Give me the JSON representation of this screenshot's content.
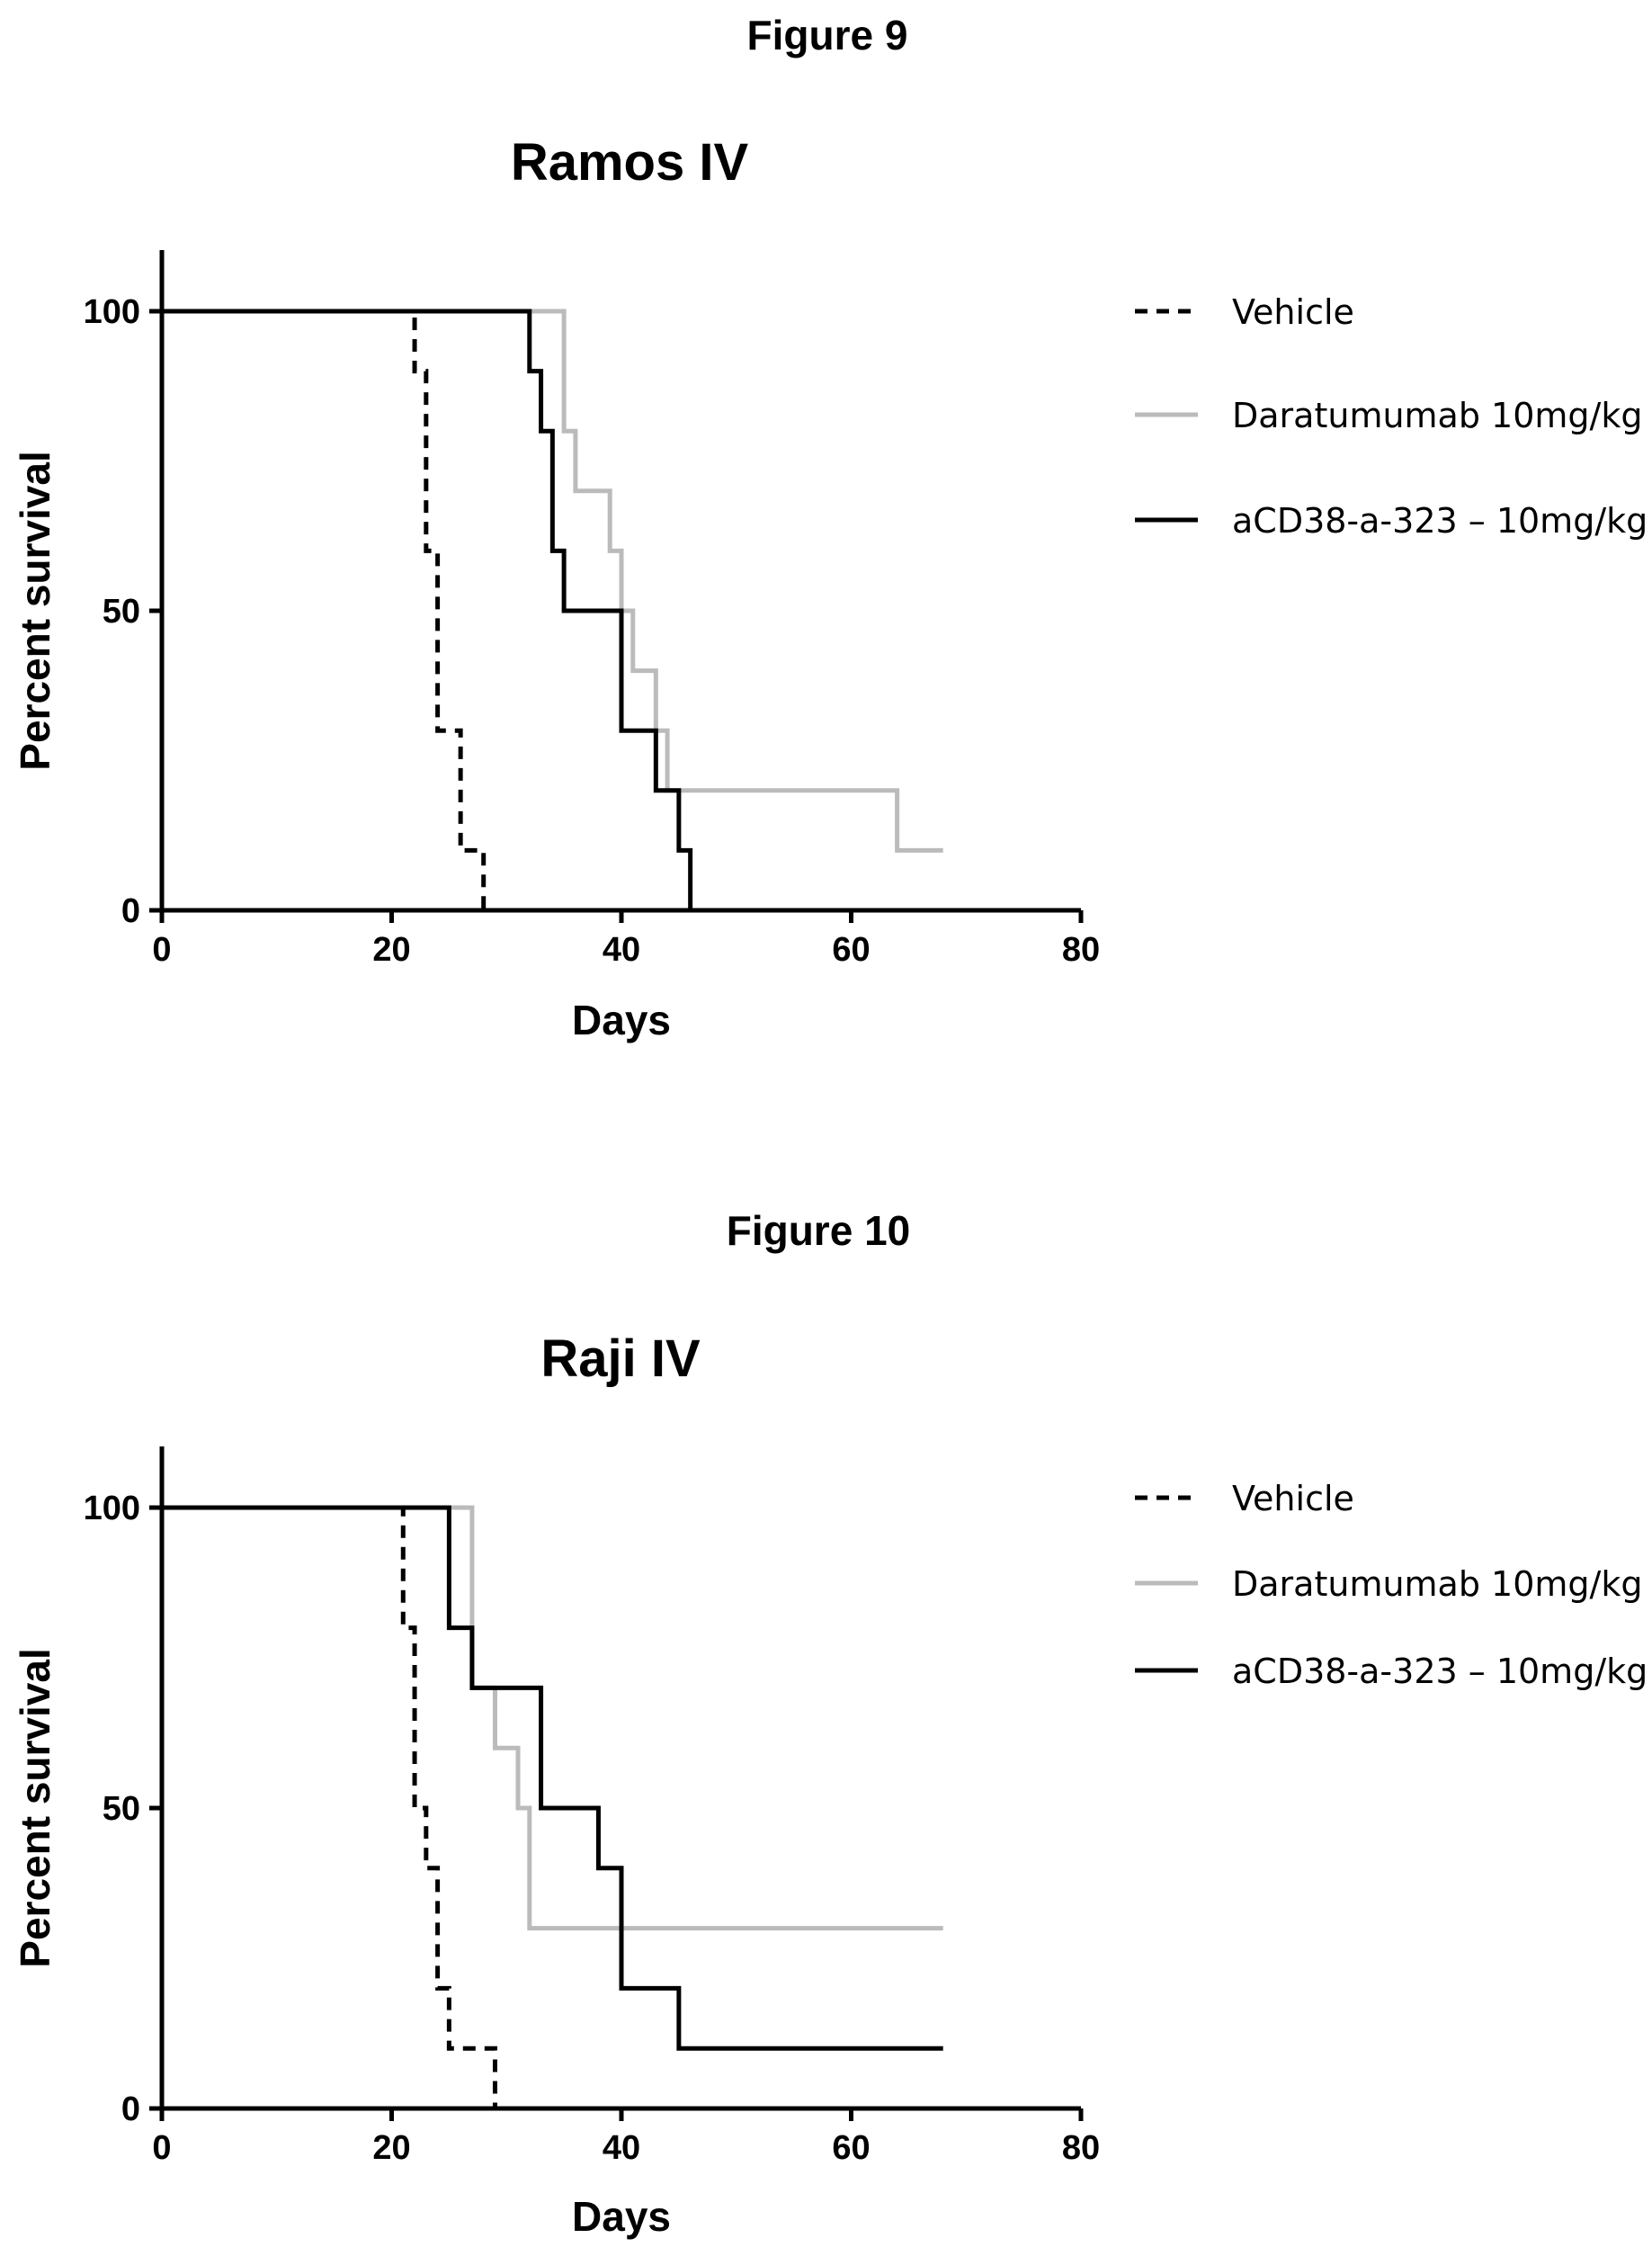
{
  "figures": [
    {
      "label": "Figure 9"
    },
    {
      "label": "Figure 10"
    }
  ],
  "colors": {
    "vehicle": "#000000",
    "daratumumab": "#bbbbbb",
    "acd38": "#000000"
  },
  "chart_data": [
    {
      "type": "line",
      "subtype": "step (Kaplan-Meier survival)",
      "title": "Ramos IV",
      "xlabel": "Days",
      "ylabel": "Percent survival",
      "xlim": [
        0,
        80
      ],
      "ylim": [
        0,
        110
      ],
      "xticks": [
        0,
        20,
        40,
        60,
        80
      ],
      "yticks": [
        0,
        50,
        100
      ],
      "grid": false,
      "legend_position": "right",
      "series": [
        {
          "name": "Vehicle",
          "style": "dashed",
          "color": "#000000",
          "x": [
            0,
            22,
            23,
            24,
            26,
            28
          ],
          "y": [
            100,
            90,
            60,
            30,
            10,
            0
          ]
        },
        {
          "name": "Daratumumab 10mg/kg",
          "style": "solid",
          "color": "#bbbbbb",
          "x": [
            0,
            35,
            36,
            39,
            40,
            41,
            43,
            44,
            64,
            68
          ],
          "y": [
            100,
            80,
            70,
            60,
            50,
            40,
            30,
            20,
            10,
            10
          ]
        },
        {
          "name": "aCD38-a-323 – 10mg/kg",
          "style": "solid",
          "color": "#000000",
          "x": [
            0,
            32,
            33,
            34,
            35,
            40,
            43,
            45,
            46
          ],
          "y": [
            100,
            90,
            80,
            60,
            50,
            30,
            20,
            10,
            0
          ]
        }
      ]
    },
    {
      "type": "line",
      "subtype": "step (Kaplan-Meier survival)",
      "title": "Raji IV",
      "xlabel": "Days",
      "ylabel": "Percent survival",
      "xlim": [
        0,
        80
      ],
      "ylim": [
        0,
        110
      ],
      "xticks": [
        0,
        20,
        40,
        60,
        80
      ],
      "yticks": [
        0,
        50,
        100
      ],
      "grid": false,
      "legend_position": "right",
      "series": [
        {
          "name": "Vehicle",
          "style": "dashed",
          "color": "#000000",
          "x": [
            0,
            21,
            22,
            23,
            24,
            25,
            29
          ],
          "y": [
            100,
            80,
            50,
            40,
            20,
            10,
            0
          ]
        },
        {
          "name": "Daratumumab 10mg/kg",
          "style": "solid",
          "color": "#bbbbbb",
          "x": [
            0,
            27,
            29,
            31,
            32,
            68
          ],
          "y": [
            100,
            70,
            60,
            50,
            30,
            30
          ]
        },
        {
          "name": "aCD38-a-323 – 10mg/kg",
          "style": "solid",
          "color": "#000000",
          "x": [
            0,
            25,
            27,
            33,
            38,
            40,
            45,
            68
          ],
          "y": [
            100,
            80,
            70,
            50,
            40,
            20,
            10,
            10
          ]
        }
      ]
    }
  ]
}
